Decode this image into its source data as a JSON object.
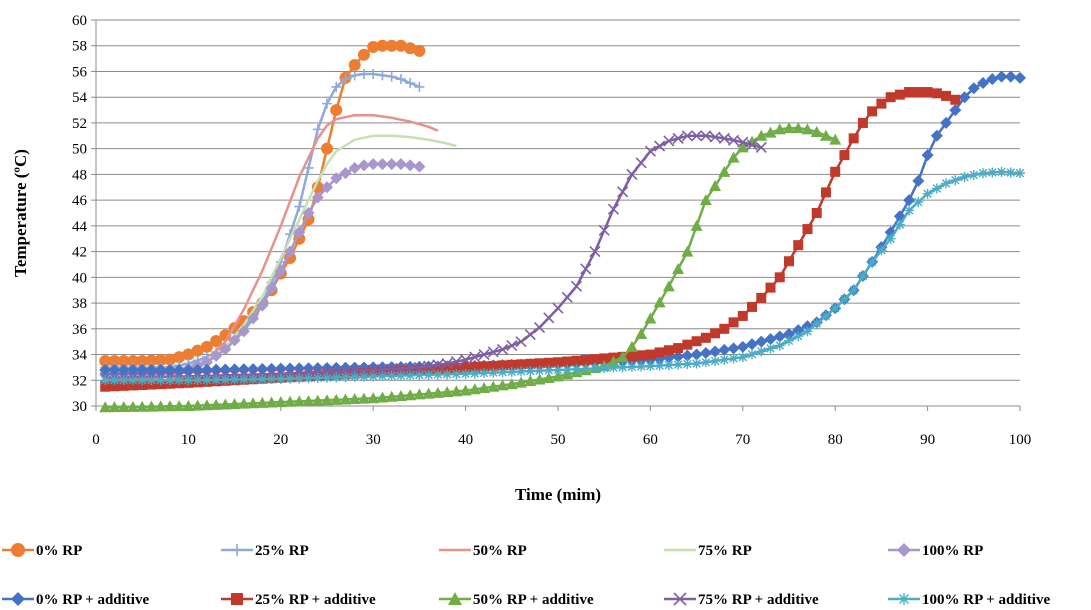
{
  "chart_data": {
    "type": "line",
    "title": "",
    "xlabel": "Time (mim)",
    "ylabel": "Temperature (ºC)",
    "xlim": [
      0,
      100
    ],
    "ylim": [
      30,
      60
    ],
    "x_ticks": [
      0,
      10,
      20,
      30,
      40,
      50,
      60,
      70,
      80,
      90,
      100
    ],
    "y_ticks": [
      30,
      32,
      34,
      36,
      38,
      40,
      42,
      44,
      46,
      48,
      50,
      52,
      54,
      56,
      58,
      60
    ],
    "grid": "horizontal",
    "legend_position": "bottom",
    "series": [
      {
        "name": "0% RP",
        "color": "#ED7D31",
        "marker": "circle",
        "points": [
          [
            1,
            33.5
          ],
          [
            5,
            33.5
          ],
          [
            8,
            33.6
          ],
          [
            10,
            34
          ],
          [
            12,
            34.6
          ],
          [
            14,
            35.5
          ],
          [
            16,
            36.6
          ],
          [
            18,
            38
          ],
          [
            19,
            39
          ],
          [
            20,
            40.3
          ],
          [
            21,
            41.5
          ],
          [
            22,
            43
          ],
          [
            23,
            44.5
          ],
          [
            24,
            47
          ],
          [
            25,
            50
          ],
          [
            26,
            53
          ],
          [
            27,
            55.5
          ],
          [
            28,
            56.5
          ],
          [
            29,
            57.3
          ],
          [
            30,
            57.9
          ],
          [
            31,
            58
          ],
          [
            32,
            58
          ],
          [
            33,
            58
          ],
          [
            34,
            57.8
          ],
          [
            35,
            57.6
          ]
        ]
      },
      {
        "name": "25%  RP",
        "color": "#8EA9DB",
        "marker": "plus",
        "points": [
          [
            1,
            33
          ],
          [
            5,
            33
          ],
          [
            8,
            33
          ],
          [
            10,
            33.3
          ],
          [
            12,
            33.8
          ],
          [
            14,
            34.6
          ],
          [
            16,
            36
          ],
          [
            18,
            38
          ],
          [
            20,
            41.2
          ],
          [
            22,
            45.5
          ],
          [
            23,
            48.5
          ],
          [
            24,
            51.5
          ],
          [
            25,
            53.5
          ],
          [
            26,
            54.8
          ],
          [
            27,
            55.4
          ],
          [
            28,
            55.7
          ],
          [
            29,
            55.8
          ],
          [
            30,
            55.8
          ],
          [
            31,
            55.7
          ],
          [
            32,
            55.6
          ],
          [
            33,
            55.4
          ],
          [
            34,
            55.1
          ],
          [
            35,
            54.8
          ]
        ]
      },
      {
        "name": "50%  RP",
        "color": "#E6928E",
        "marker": "none",
        "points": [
          [
            1,
            32
          ],
          [
            5,
            32.1
          ],
          [
            8,
            32.3
          ],
          [
            10,
            32.7
          ],
          [
            12,
            33.6
          ],
          [
            14,
            35
          ],
          [
            16,
            37.5
          ],
          [
            18,
            40.5
          ],
          [
            20,
            44
          ],
          [
            22,
            47.8
          ],
          [
            24,
            50.8
          ],
          [
            25,
            51.8
          ],
          [
            26,
            52.3
          ],
          [
            28,
            52.6
          ],
          [
            30,
            52.6
          ],
          [
            32,
            52.4
          ],
          [
            34,
            52.1
          ],
          [
            36,
            51.7
          ],
          [
            37,
            51.4
          ]
        ]
      },
      {
        "name": "75%  RP",
        "color": "#C5E0B4",
        "marker": "none",
        "points": [
          [
            1,
            32.5
          ],
          [
            5,
            32.5
          ],
          [
            8,
            32.7
          ],
          [
            10,
            33
          ],
          [
            12,
            33.6
          ],
          [
            14,
            34.6
          ],
          [
            16,
            36.3
          ],
          [
            18,
            38.5
          ],
          [
            20,
            41.5
          ],
          [
            22,
            44.5
          ],
          [
            24,
            47.5
          ],
          [
            25,
            48.8
          ],
          [
            26,
            49.8
          ],
          [
            28,
            50.7
          ],
          [
            30,
            51
          ],
          [
            32,
            51
          ],
          [
            34,
            50.9
          ],
          [
            36,
            50.7
          ],
          [
            38,
            50.4
          ],
          [
            39,
            50.2
          ]
        ]
      },
      {
        "name": "100%  RP",
        "color": "#A797CC",
        "marker": "diamond",
        "points": [
          [
            1,
            32.4
          ],
          [
            5,
            32.4
          ],
          [
            8,
            32.6
          ],
          [
            10,
            32.9
          ],
          [
            12,
            33.4
          ],
          [
            14,
            34.4
          ],
          [
            16,
            35.8
          ],
          [
            18,
            37.8
          ],
          [
            20,
            40.5
          ],
          [
            21,
            42
          ],
          [
            22,
            43.5
          ],
          [
            23,
            45
          ],
          [
            24,
            46.2
          ],
          [
            25,
            47
          ],
          [
            26,
            47.7
          ],
          [
            27,
            48.1
          ],
          [
            28,
            48.5
          ],
          [
            29,
            48.7
          ],
          [
            30,
            48.8
          ],
          [
            31,
            48.8
          ],
          [
            32,
            48.8
          ],
          [
            33,
            48.8
          ],
          [
            34,
            48.7
          ],
          [
            35,
            48.6
          ]
        ]
      },
      {
        "name": "0% RP + additive",
        "color": "#4472C4",
        "marker": "diamond",
        "points": [
          [
            1,
            32.8
          ],
          [
            10,
            32.8
          ],
          [
            20,
            32.9
          ],
          [
            30,
            33
          ],
          [
            40,
            33.1
          ],
          [
            50,
            33.3
          ],
          [
            60,
            33.6
          ],
          [
            65,
            34
          ],
          [
            70,
            34.6
          ],
          [
            75,
            35.6
          ],
          [
            78,
            36.5
          ],
          [
            80,
            37.6
          ],
          [
            82,
            39
          ],
          [
            84,
            41.2
          ],
          [
            86,
            43.5
          ],
          [
            88,
            46
          ],
          [
            89,
            47.5
          ],
          [
            90,
            49.5
          ],
          [
            91,
            51
          ],
          [
            92,
            52
          ],
          [
            93,
            53
          ],
          [
            94,
            54
          ],
          [
            95,
            54.7
          ],
          [
            96,
            55.1
          ],
          [
            97,
            55.4
          ],
          [
            98,
            55.6
          ],
          [
            99,
            55.6
          ],
          [
            100,
            55.5
          ]
        ]
      },
      {
        "name": "25% RP + additive",
        "color": "#C0392B",
        "marker": "square",
        "points": [
          [
            1,
            31.5
          ],
          [
            10,
            31.8
          ],
          [
            20,
            32.2
          ],
          [
            30,
            32.6
          ],
          [
            40,
            33
          ],
          [
            50,
            33.4
          ],
          [
            55,
            33.7
          ],
          [
            60,
            34
          ],
          [
            63,
            34.5
          ],
          [
            66,
            35.3
          ],
          [
            68,
            36
          ],
          [
            70,
            37
          ],
          [
            72,
            38.4
          ],
          [
            74,
            40
          ],
          [
            76,
            42.5
          ],
          [
            78,
            45
          ],
          [
            80,
            48.2
          ],
          [
            81,
            49.5
          ],
          [
            82,
            50.8
          ],
          [
            83,
            52
          ],
          [
            84,
            52.9
          ],
          [
            85,
            53.5
          ],
          [
            86,
            54
          ],
          [
            87,
            54.2
          ],
          [
            88,
            54.4
          ],
          [
            89,
            54.4
          ],
          [
            90,
            54.4
          ],
          [
            91,
            54.3
          ],
          [
            92,
            54.1
          ],
          [
            93,
            53.8
          ]
        ]
      },
      {
        "name": "50% RP + additive",
        "color": "#70AD47",
        "marker": "triangle",
        "points": [
          [
            1,
            29.9
          ],
          [
            10,
            30
          ],
          [
            20,
            30.3
          ],
          [
            30,
            30.6
          ],
          [
            40,
            31.2
          ],
          [
            45,
            31.7
          ],
          [
            50,
            32.3
          ],
          [
            55,
            33.1
          ],
          [
            57,
            33.8
          ],
          [
            58,
            34.6
          ],
          [
            59,
            35.6
          ],
          [
            60,
            36.8
          ],
          [
            62,
            39.3
          ],
          [
            64,
            42
          ],
          [
            66,
            46
          ],
          [
            68,
            48.2
          ],
          [
            69,
            49.3
          ],
          [
            70,
            50.1
          ],
          [
            72,
            51
          ],
          [
            74,
            51.5
          ],
          [
            75,
            51.6
          ],
          [
            76,
            51.6
          ],
          [
            77,
            51.5
          ],
          [
            78,
            51.3
          ],
          [
            79,
            51
          ],
          [
            80,
            50.7
          ]
        ]
      },
      {
        "name": "75% RP + additive",
        "color": "#7E5FA3",
        "marker": "x",
        "points": [
          [
            1,
            32.2
          ],
          [
            10,
            32.3
          ],
          [
            20,
            32.5
          ],
          [
            30,
            32.8
          ],
          [
            35,
            33
          ],
          [
            38,
            33.3
          ],
          [
            40,
            33.6
          ],
          [
            42,
            34
          ],
          [
            44,
            34.4
          ],
          [
            46,
            35
          ],
          [
            48,
            36.1
          ],
          [
            50,
            37.6
          ],
          [
            52,
            39.3
          ],
          [
            54,
            42
          ],
          [
            56,
            45.3
          ],
          [
            58,
            48
          ],
          [
            60,
            49.8
          ],
          [
            62,
            50.6
          ],
          [
            64,
            51
          ],
          [
            66,
            51
          ],
          [
            68,
            50.8
          ],
          [
            70,
            50.5
          ],
          [
            72,
            50.1
          ]
        ]
      },
      {
        "name": "100% RP + additive",
        "color": "#4BACC6",
        "marker": "asterisk",
        "points": [
          [
            1,
            32
          ],
          [
            10,
            32
          ],
          [
            20,
            32.1
          ],
          [
            30,
            32.3
          ],
          [
            40,
            32.5
          ],
          [
            50,
            32.8
          ],
          [
            60,
            33.1
          ],
          [
            65,
            33.3
          ],
          [
            70,
            33.8
          ],
          [
            74,
            34.7
          ],
          [
            77,
            35.8
          ],
          [
            80,
            37.6
          ],
          [
            82,
            39
          ],
          [
            84,
            41.2
          ],
          [
            86,
            43
          ],
          [
            88,
            45.2
          ],
          [
            90,
            46.5
          ],
          [
            92,
            47.3
          ],
          [
            94,
            47.8
          ],
          [
            96,
            48.1
          ],
          [
            98,
            48.2
          ],
          [
            100,
            48.1
          ]
        ]
      }
    ]
  }
}
